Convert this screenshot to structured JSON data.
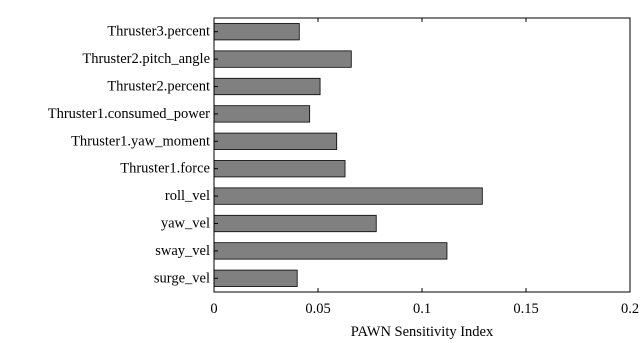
{
  "chart_data": {
    "type": "bar",
    "orientation": "horizontal",
    "categories": [
      "Thruster3.percent",
      "Thruster2.pitch_angle",
      "Thruster2.percent",
      "Thruster1.consumed_power",
      "Thruster1.yaw_moment",
      "Thruster1.force",
      "roll_vel",
      "yaw_vel",
      "sway_vel",
      "surge_vel"
    ],
    "values": [
      0.041,
      0.066,
      0.051,
      0.046,
      0.059,
      0.063,
      0.129,
      0.078,
      0.112,
      0.04
    ],
    "xlabel": "PAWN Sensitivity Index",
    "ylabel": "",
    "xlim": [
      0,
      0.2
    ],
    "xticks": [
      0,
      0.05,
      0.1,
      0.15,
      0.2
    ],
    "xtick_labels": [
      "0",
      "0.05",
      "0.1",
      "0.15",
      "0.2"
    ],
    "grid": false,
    "bar_color": "#808080",
    "bar_edge_color": "#000000"
  }
}
